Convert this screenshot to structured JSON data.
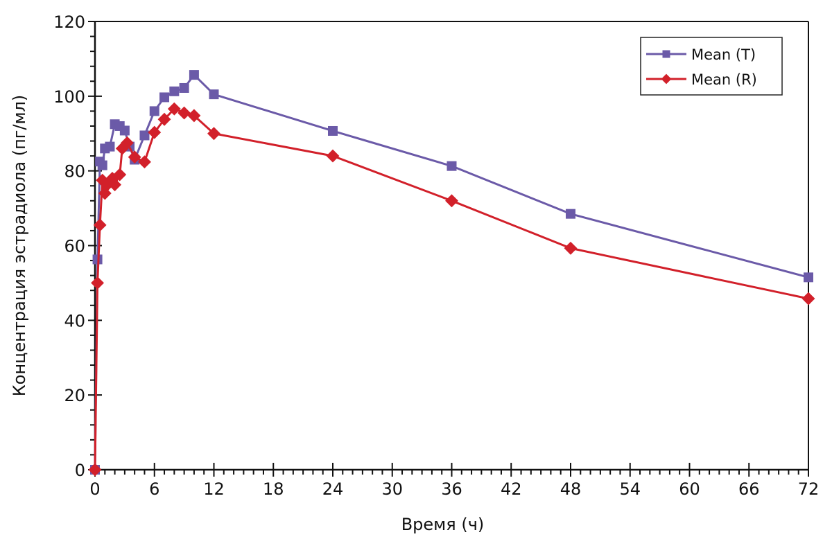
{
  "chart_data": {
    "type": "line",
    "title": "",
    "xlabel": "Время (ч)",
    "ylabel": "Концентрация эстрадиола (пг/мл)",
    "xlim": [
      0,
      72
    ],
    "ylim": [
      0,
      120
    ],
    "xticks": [
      0,
      6,
      12,
      18,
      24,
      30,
      36,
      42,
      48,
      54,
      60,
      66,
      72
    ],
    "xtick_labels": [
      "0",
      "6",
      "12",
      "18",
      "24",
      "30",
      "36",
      "42",
      "48",
      "54",
      "60",
      "66",
      "72"
    ],
    "yticks": [
      0,
      20,
      40,
      60,
      80,
      100,
      120
    ],
    "ytick_labels": [
      "0",
      "20",
      "40",
      "60",
      "80",
      "100",
      "120"
    ],
    "x_minor_step": 1,
    "y_minor_step": 4,
    "grid": false,
    "legend_position": "top-right",
    "series": [
      {
        "name": "Mean (T)",
        "color": "#6b5aa8",
        "marker": "square",
        "x": [
          0,
          0.25,
          0.5,
          0.75,
          1,
          1.5,
          2,
          2.5,
          3,
          3.5,
          4,
          5,
          6,
          7,
          8,
          9,
          10,
          12,
          24,
          36,
          48,
          72
        ],
        "y": [
          0,
          56.3,
          82.5,
          81.5,
          86,
          86.5,
          92.5,
          92,
          90.8,
          86.5,
          83,
          89.5,
          96,
          99.7,
          101.3,
          102.2,
          105.7,
          100.5,
          90.7,
          81.3,
          68.5,
          51.5
        ]
      },
      {
        "name": "Mean (R)",
        "color": "#d2202a",
        "marker": "diamond",
        "x": [
          0,
          0.25,
          0.5,
          0.75,
          1,
          1.25,
          1.75,
          2,
          2.5,
          2.75,
          3.25,
          4,
          5,
          6,
          7,
          8,
          9,
          10,
          12,
          24,
          36,
          48,
          72
        ],
        "y": [
          0,
          50,
          65.5,
          77.5,
          74,
          76.3,
          78,
          76.3,
          79,
          86,
          87.5,
          83.7,
          82.4,
          90.3,
          93.8,
          96.6,
          95.5,
          94.8,
          90,
          84,
          72,
          59.3,
          45.8
        ]
      }
    ]
  }
}
